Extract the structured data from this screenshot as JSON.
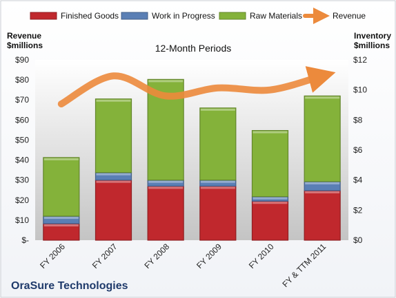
{
  "chart_data": {
    "type": "bar",
    "title": "12-Month Periods",
    "company": "OraSure Technologies",
    "categories": [
      "FY 2006",
      "FY 2007",
      "FY 2008",
      "FY 2009",
      "FY 2010",
      "FY & TTM 2011"
    ],
    "y_left": {
      "label_line1": "Revenue",
      "label_line2": "$millions",
      "ylim": [
        0,
        90
      ],
      "ticks": [
        "$-",
        "$10",
        "$20",
        "$30",
        "$40",
        "$50",
        "$60",
        "$70",
        "$80",
        "$90"
      ],
      "tick_values": [
        0,
        10,
        20,
        30,
        40,
        50,
        60,
        70,
        80,
        90
      ]
    },
    "y_right": {
      "label_line1": "Inventory",
      "label_line2": "$millions",
      "ylim": [
        0,
        12
      ],
      "ticks": [
        "$0",
        "$2",
        "$4",
        "$6",
        "$8",
        "$10",
        "$12"
      ],
      "tick_values": [
        0,
        2,
        4,
        6,
        8,
        10,
        12
      ]
    },
    "series": [
      {
        "name": "Finished Goods",
        "axis": "right",
        "color": "#c0282d",
        "values": [
          1.1,
          4.0,
          3.6,
          3.6,
          2.6,
          3.3
        ]
      },
      {
        "name": "Work in Progress",
        "axis": "right",
        "color": "#5a7fb5",
        "values": [
          0.5,
          0.5,
          0.4,
          0.4,
          0.3,
          0.6
        ]
      },
      {
        "name": "Raw Materials",
        "axis": "right",
        "color": "#84b23a",
        "values": [
          3.9,
          4.9,
          6.7,
          4.8,
          4.4,
          5.7
        ]
      },
      {
        "name": "Revenue",
        "axis": "left",
        "type": "line",
        "color": "#ec8a3c",
        "values": [
          68,
          82,
          72,
          76,
          75,
          82
        ]
      }
    ],
    "legend_position": "top",
    "grid": false
  }
}
